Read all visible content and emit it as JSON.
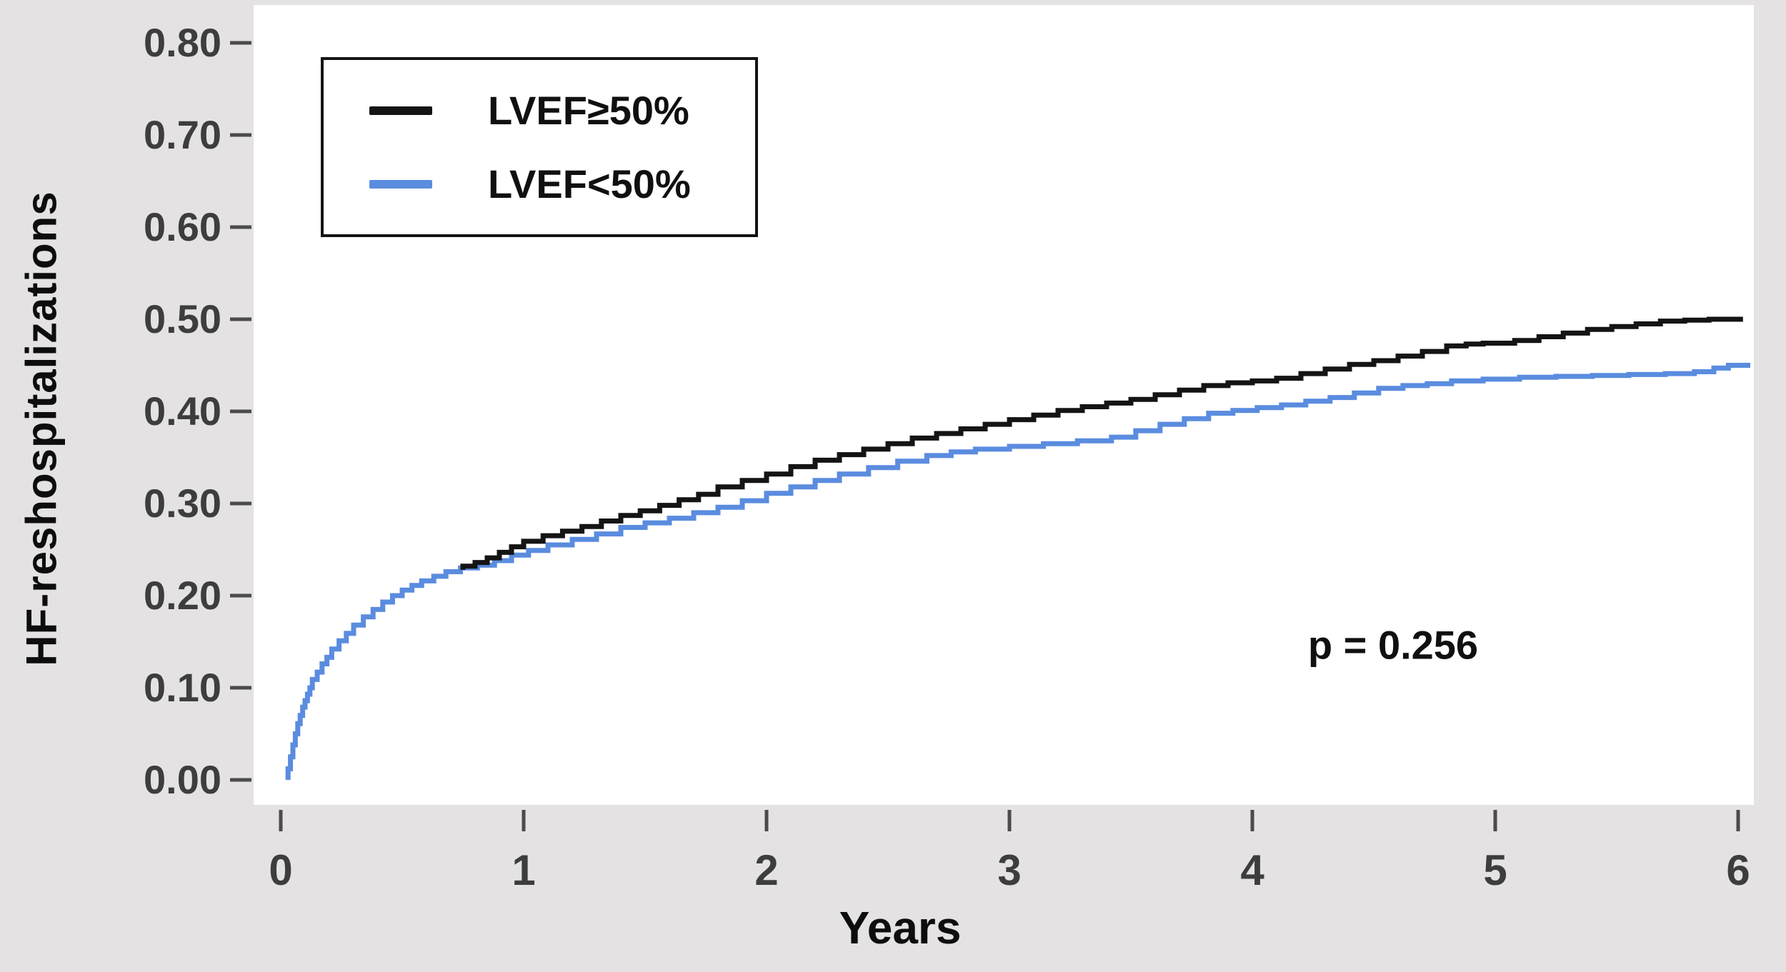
{
  "figure": {
    "background_color": "#e4e2e2",
    "plot_background_color": "#ffffff",
    "tick_label_color": "#3d3d3d",
    "tick_mark_color": "#4b4b4b",
    "title_color": "#0d0d0d"
  },
  "chart_data": {
    "type": "line",
    "subtype": "kaplan-meier-cumulative-incidence",
    "title": "",
    "xlabel": "Years",
    "ylabel": "HF-reshospitalizations",
    "xlim": [
      0,
      6
    ],
    "ylim": [
      0.0,
      0.8
    ],
    "grid": false,
    "legend_position": "upper-left",
    "annotation": "p = 0.256",
    "x_ticks": [
      0,
      1,
      2,
      3,
      4,
      5,
      6
    ],
    "x_tick_labels": [
      "0",
      "1",
      "2",
      "3",
      "4",
      "5",
      "6"
    ],
    "y_ticks": [
      0.0,
      0.1,
      0.2,
      0.3,
      0.4,
      0.5,
      0.6,
      0.7,
      0.8
    ],
    "y_tick_labels": [
      "0.00",
      "0.10",
      "0.20",
      "0.30",
      "0.40",
      "0.50",
      "0.60",
      "0.70",
      "0.80"
    ],
    "series": [
      {
        "name": "LVEF≥50%",
        "color": "#141414",
        "points": [
          [
            0.75,
            0.228
          ],
          [
            0.8,
            0.232
          ],
          [
            0.85,
            0.236
          ],
          [
            0.9,
            0.241
          ],
          [
            0.95,
            0.247
          ],
          [
            1.0,
            0.253
          ],
          [
            1.08,
            0.259
          ],
          [
            1.16,
            0.265
          ],
          [
            1.24,
            0.27
          ],
          [
            1.32,
            0.275
          ],
          [
            1.4,
            0.281
          ],
          [
            1.48,
            0.287
          ],
          [
            1.56,
            0.292
          ],
          [
            1.64,
            0.298
          ],
          [
            1.72,
            0.304
          ],
          [
            1.8,
            0.31
          ],
          [
            1.9,
            0.318
          ],
          [
            2.0,
            0.325
          ],
          [
            2.1,
            0.332
          ],
          [
            2.2,
            0.34
          ],
          [
            2.3,
            0.347
          ],
          [
            2.4,
            0.353
          ],
          [
            2.5,
            0.359
          ],
          [
            2.6,
            0.365
          ],
          [
            2.7,
            0.371
          ],
          [
            2.8,
            0.376
          ],
          [
            2.9,
            0.381
          ],
          [
            3.0,
            0.386
          ],
          [
            3.1,
            0.391
          ],
          [
            3.2,
            0.396
          ],
          [
            3.3,
            0.401
          ],
          [
            3.4,
            0.405
          ],
          [
            3.5,
            0.409
          ],
          [
            3.6,
            0.413
          ],
          [
            3.7,
            0.418
          ],
          [
            3.8,
            0.423
          ],
          [
            3.9,
            0.428
          ],
          [
            4.0,
            0.431
          ],
          [
            4.1,
            0.433
          ],
          [
            4.2,
            0.436
          ],
          [
            4.3,
            0.441
          ],
          [
            4.4,
            0.446
          ],
          [
            4.5,
            0.451
          ],
          [
            4.6,
            0.455
          ],
          [
            4.7,
            0.46
          ],
          [
            4.8,
            0.465
          ],
          [
            4.88,
            0.471
          ],
          [
            4.95,
            0.473
          ],
          [
            5.08,
            0.474
          ],
          [
            5.18,
            0.477
          ],
          [
            5.28,
            0.481
          ],
          [
            5.38,
            0.485
          ],
          [
            5.48,
            0.489
          ],
          [
            5.58,
            0.492
          ],
          [
            5.68,
            0.495
          ],
          [
            5.78,
            0.498
          ],
          [
            5.88,
            0.499
          ],
          [
            6.02,
            0.5
          ]
        ]
      },
      {
        "name": "LVEF<50%",
        "color": "#5a8cdf",
        "points": [
          [
            0.03,
            0.0
          ],
          [
            0.04,
            0.012
          ],
          [
            0.05,
            0.025
          ],
          [
            0.06,
            0.038
          ],
          [
            0.07,
            0.05
          ],
          [
            0.08,
            0.061
          ],
          [
            0.09,
            0.07
          ],
          [
            0.1,
            0.079
          ],
          [
            0.11,
            0.086
          ],
          [
            0.12,
            0.093
          ],
          [
            0.13,
            0.1
          ],
          [
            0.15,
            0.109
          ],
          [
            0.17,
            0.117
          ],
          [
            0.19,
            0.126
          ],
          [
            0.21,
            0.133
          ],
          [
            0.24,
            0.142
          ],
          [
            0.27,
            0.151
          ],
          [
            0.3,
            0.159
          ],
          [
            0.34,
            0.168
          ],
          [
            0.38,
            0.177
          ],
          [
            0.42,
            0.185
          ],
          [
            0.46,
            0.193
          ],
          [
            0.5,
            0.2
          ],
          [
            0.54,
            0.206
          ],
          [
            0.58,
            0.211
          ],
          [
            0.63,
            0.216
          ],
          [
            0.68,
            0.221
          ],
          [
            0.74,
            0.226
          ],
          [
            0.81,
            0.23
          ],
          [
            0.88,
            0.233
          ],
          [
            0.95,
            0.238
          ],
          [
            1.02,
            0.244
          ],
          [
            1.1,
            0.249
          ],
          [
            1.2,
            0.255
          ],
          [
            1.3,
            0.261
          ],
          [
            1.4,
            0.267
          ],
          [
            1.5,
            0.274
          ],
          [
            1.6,
            0.279
          ],
          [
            1.7,
            0.284
          ],
          [
            1.8,
            0.29
          ],
          [
            1.9,
            0.296
          ],
          [
            2.0,
            0.303
          ],
          [
            2.1,
            0.311
          ],
          [
            2.2,
            0.318
          ],
          [
            2.3,
            0.325
          ],
          [
            2.42,
            0.332
          ],
          [
            2.54,
            0.339
          ],
          [
            2.66,
            0.346
          ],
          [
            2.76,
            0.352
          ],
          [
            2.86,
            0.356
          ],
          [
            3.0,
            0.359
          ],
          [
            3.14,
            0.362
          ],
          [
            3.28,
            0.365
          ],
          [
            3.42,
            0.368
          ],
          [
            3.52,
            0.372
          ],
          [
            3.62,
            0.379
          ],
          [
            3.72,
            0.386
          ],
          [
            3.82,
            0.392
          ],
          [
            3.92,
            0.398
          ],
          [
            4.02,
            0.401
          ],
          [
            4.12,
            0.404
          ],
          [
            4.22,
            0.407
          ],
          [
            4.32,
            0.411
          ],
          [
            4.42,
            0.415
          ],
          [
            4.52,
            0.42
          ],
          [
            4.62,
            0.425
          ],
          [
            4.72,
            0.428
          ],
          [
            4.82,
            0.43
          ],
          [
            4.95,
            0.433
          ],
          [
            5.1,
            0.435
          ],
          [
            5.25,
            0.437
          ],
          [
            5.4,
            0.438
          ],
          [
            5.55,
            0.439
          ],
          [
            5.7,
            0.44
          ],
          [
            5.82,
            0.441
          ],
          [
            5.9,
            0.443
          ],
          [
            5.96,
            0.447
          ],
          [
            6.05,
            0.45
          ]
        ]
      }
    ]
  }
}
